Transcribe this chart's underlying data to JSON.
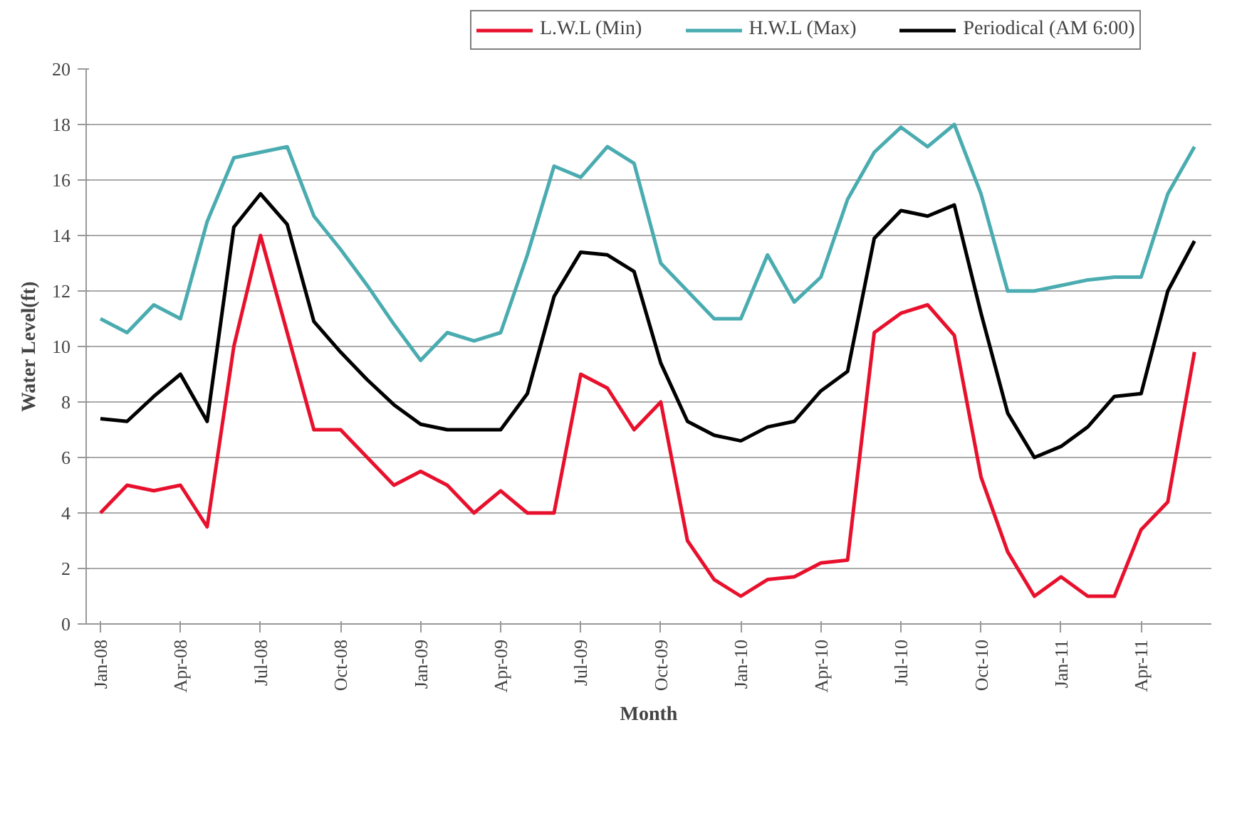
{
  "chart_data": {
    "type": "line",
    "xlabel": "Month",
    "ylabel": "Water Level(ft)",
    "x": [
      "2008-01",
      "2008-02",
      "2008-03",
      "2008-04",
      "2008-05",
      "2008-06",
      "2008-07",
      "2008-08",
      "2008-09",
      "2008-10",
      "2008-11",
      "2008-12",
      "2009-01",
      "2009-02",
      "2009-03",
      "2009-04",
      "2009-05",
      "2009-06",
      "2009-07",
      "2009-08",
      "2009-09",
      "2009-10",
      "2009-11",
      "2009-12",
      "2010-01",
      "2010-02",
      "2010-03",
      "2010-04",
      "2010-05",
      "2010-06",
      "2010-07",
      "2010-08",
      "2010-09",
      "2010-10",
      "2010-11",
      "2010-12",
      "2011-01",
      "2011-02",
      "2011-03",
      "2011-04",
      "2011-05",
      "2011-06"
    ],
    "series": [
      {
        "name": "L.W.L (Min)",
        "color": "#e8112d",
        "values": [
          4.0,
          5.0,
          4.8,
          5.0,
          3.5,
          10.0,
          14.0,
          10.5,
          7.0,
          7.0,
          6.0,
          5.0,
          5.5,
          5.0,
          4.0,
          4.8,
          4.0,
          4.0,
          9.0,
          8.5,
          7.0,
          8.0,
          3.0,
          1.6,
          1.0,
          1.6,
          1.7,
          2.2,
          2.3,
          10.5,
          11.2,
          11.5,
          10.4,
          5.3,
          2.6,
          1.0,
          1.7,
          1.0,
          1.0,
          3.4,
          4.4,
          9.8
        ]
      },
      {
        "name": "H.W.L (Max)",
        "color": "#4aacb0",
        "values": [
          11.0,
          10.5,
          11.5,
          11.0,
          14.5,
          16.8,
          17.0,
          17.2,
          14.7,
          13.5,
          12.2,
          10.8,
          9.5,
          10.5,
          10.2,
          10.5,
          13.3,
          16.5,
          16.1,
          17.2,
          16.6,
          13.0,
          12.0,
          11.0,
          11.0,
          13.3,
          11.6,
          12.5,
          15.3,
          17.0,
          17.9,
          17.2,
          18.0,
          15.5,
          12.0,
          12.0,
          12.2,
          12.4,
          12.5,
          12.5,
          15.5,
          17.2
        ]
      },
      {
        "name": "Periodical (AM 6:00)",
        "color": "#000000",
        "values": [
          7.4,
          7.3,
          8.2,
          9.0,
          7.3,
          14.3,
          15.5,
          14.4,
          10.9,
          9.8,
          8.8,
          7.9,
          7.2,
          7.0,
          7.0,
          7.0,
          8.3,
          11.8,
          13.4,
          13.3,
          12.7,
          9.4,
          7.3,
          6.8,
          6.6,
          7.1,
          7.3,
          8.4,
          9.1,
          13.9,
          14.9,
          14.7,
          15.1,
          11.2,
          7.6,
          6.0,
          6.4,
          7.1,
          8.2,
          8.3,
          12.0,
          13.8
        ]
      }
    ],
    "xlim": [
      "2007-12-15",
      "2011-06-20"
    ],
    "xticks": [
      {
        "value": "2008-01",
        "label": "Jan-08"
      },
      {
        "value": "2008-04",
        "label": "Apr-08"
      },
      {
        "value": "2008-07",
        "label": "Jul-08"
      },
      {
        "value": "2008-10",
        "label": "Oct-08"
      },
      {
        "value": "2009-01",
        "label": "Jan-09"
      },
      {
        "value": "2009-04",
        "label": "Apr-09"
      },
      {
        "value": "2009-07",
        "label": "Jul-09"
      },
      {
        "value": "2009-10",
        "label": "Oct-09"
      },
      {
        "value": "2010-01",
        "label": "Jan-10"
      },
      {
        "value": "2010-04",
        "label": "Apr-10"
      },
      {
        "value": "2010-07",
        "label": "Jul-10"
      },
      {
        "value": "2010-10",
        "label": "Oct-10"
      },
      {
        "value": "2011-01",
        "label": "Jan-11"
      },
      {
        "value": "2011-04",
        "label": "Apr-11"
      }
    ],
    "ylim": [
      0,
      20
    ],
    "yticks": [
      0,
      2,
      4,
      6,
      8,
      10,
      12,
      14,
      16,
      18,
      20
    ],
    "grid": "y",
    "legend": "top",
    "marker": "none",
    "line_style": "solid"
  }
}
